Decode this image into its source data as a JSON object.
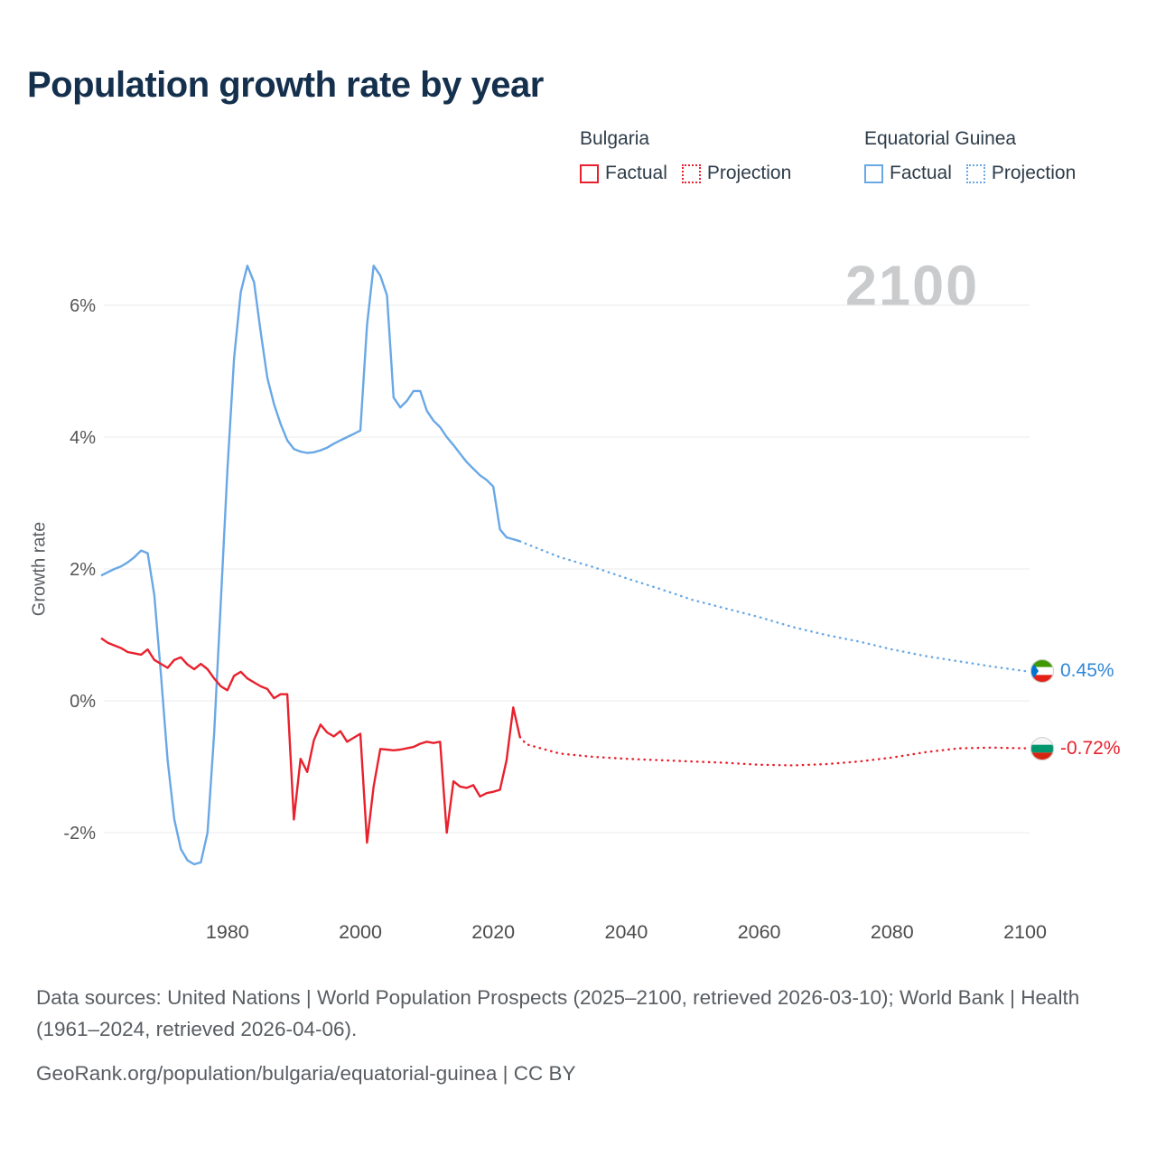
{
  "title": "Population growth rate by year",
  "watermark": "2100",
  "legend": {
    "groups": [
      {
        "name": "Bulgaria",
        "color": "#e8212d",
        "entries": [
          {
            "label": "Factual",
            "style": "solid"
          },
          {
            "label": "Projection",
            "style": "dotted"
          }
        ]
      },
      {
        "name": "Equatorial Guinea",
        "color": "#69a8e6",
        "entries": [
          {
            "label": "Factual",
            "style": "solid"
          },
          {
            "label": "Projection",
            "style": "dotted"
          }
        ]
      }
    ]
  },
  "end_labels": [
    {
      "series": "Equatorial Guinea",
      "value": "0.45%",
      "color": "#2f87d8"
    },
    {
      "series": "Bulgaria",
      "value": "-0.72%",
      "color": "#e8212d"
    }
  ],
  "footer": {
    "sources_line": "Data sources: United Nations | World Population Prospects (2025–2100, retrieved 2026-03-10); World Bank | Health (1961–2024, retrieved 2026-04-06).",
    "attribution_line": "GeoRank.org/population/bulgaria/equatorial-guinea | CC BY"
  },
  "chart_data": {
    "type": "line",
    "title": "Population growth rate by year",
    "xlabel": "",
    "ylabel": "Growth rate",
    "x_ticks": [
      1980,
      2000,
      2020,
      2040,
      2060,
      2080,
      2100
    ],
    "y_ticks": [
      6,
      4,
      2,
      0,
      -2
    ],
    "y_tick_suffix": "%",
    "xlim": [
      1961,
      2113
    ],
    "ylim": [
      -2.9,
      7.0
    ],
    "grid": true,
    "legend_position": "top-right",
    "series": [
      {
        "name": "Equatorial Guinea Factual",
        "color": "#69a8e6",
        "style": "solid",
        "x": [
          1961,
          1962,
          1963,
          1964,
          1965,
          1966,
          1967,
          1968,
          1969,
          1970,
          1971,
          1972,
          1973,
          1974,
          1975,
          1976,
          1977,
          1978,
          1979,
          1980,
          1981,
          1982,
          1983,
          1984,
          1985,
          1986,
          1987,
          1988,
          1989,
          1990,
          1991,
          1992,
          1993,
          1994,
          1995,
          1996,
          1997,
          1998,
          1999,
          2000,
          2001,
          2002,
          2003,
          2004,
          2005,
          2006,
          2007,
          2008,
          2009,
          2010,
          2011,
          2012,
          2013,
          2014,
          2015,
          2016,
          2017,
          2018,
          2019,
          2020,
          2021,
          2022,
          2023,
          2024
        ],
        "y": [
          1.9,
          1.95,
          2.0,
          2.04,
          2.1,
          2.18,
          2.28,
          2.24,
          1.6,
          0.4,
          -0.9,
          -1.8,
          -2.25,
          -2.42,
          -2.48,
          -2.45,
          -2.0,
          -0.5,
          1.5,
          3.5,
          5.2,
          6.2,
          6.6,
          6.35,
          5.6,
          4.9,
          4.5,
          4.2,
          3.95,
          3.82,
          3.78,
          3.76,
          3.77,
          3.8,
          3.84,
          3.9,
          3.95,
          4.0,
          4.05,
          4.1,
          5.7,
          6.6,
          6.45,
          6.15,
          4.6,
          4.45,
          4.55,
          4.7,
          4.7,
          4.4,
          4.25,
          4.15,
          4.0,
          3.88,
          3.75,
          3.62,
          3.52,
          3.42,
          3.35,
          3.25,
          2.6,
          2.48,
          2.45,
          2.42
        ]
      },
      {
        "name": "Equatorial Guinea Projection",
        "color": "#69a8e6",
        "style": "dotted",
        "x": [
          2024,
          2025,
          2030,
          2035,
          2040,
          2045,
          2050,
          2055,
          2060,
          2065,
          2070,
          2075,
          2080,
          2085,
          2090,
          2095,
          2100
        ],
        "y": [
          2.42,
          2.38,
          2.18,
          2.03,
          1.86,
          1.7,
          1.53,
          1.4,
          1.27,
          1.12,
          1.0,
          0.9,
          0.78,
          0.68,
          0.6,
          0.52,
          0.45
        ]
      },
      {
        "name": "Bulgaria Factual",
        "color": "#e8212d",
        "style": "solid",
        "x": [
          1961,
          1962,
          1963,
          1964,
          1965,
          1966,
          1967,
          1968,
          1969,
          1970,
          1971,
          1972,
          1973,
          1974,
          1975,
          1976,
          1977,
          1978,
          1979,
          1980,
          1981,
          1982,
          1983,
          1984,
          1985,
          1986,
          1987,
          1988,
          1989,
          1990,
          1991,
          1992,
          1993,
          1994,
          1995,
          1996,
          1997,
          1998,
          1999,
          2000,
          2001,
          2002,
          2003,
          2004,
          2005,
          2006,
          2007,
          2008,
          2009,
          2010,
          2011,
          2012,
          2013,
          2014,
          2015,
          2016,
          2017,
          2018,
          2019,
          2020,
          2021,
          2022,
          2023,
          2024
        ],
        "y": [
          0.95,
          0.88,
          0.84,
          0.8,
          0.74,
          0.72,
          0.7,
          0.78,
          0.62,
          0.56,
          0.5,
          0.62,
          0.66,
          0.55,
          0.48,
          0.56,
          0.48,
          0.34,
          0.22,
          0.16,
          0.38,
          0.44,
          0.34,
          0.28,
          0.22,
          0.18,
          0.04,
          0.1,
          0.1,
          -1.8,
          -0.88,
          -1.08,
          -0.6,
          -0.36,
          -0.48,
          -0.54,
          -0.46,
          -0.62,
          -0.56,
          -0.5,
          -2.15,
          -1.3,
          -0.73,
          -0.74,
          -0.75,
          -0.74,
          -0.72,
          -0.7,
          -0.65,
          -0.62,
          -0.64,
          -0.62,
          -2.0,
          -1.22,
          -1.3,
          -1.32,
          -1.28,
          -1.45,
          -1.4,
          -1.38,
          -1.35,
          -0.9,
          -0.1,
          -0.55
        ]
      },
      {
        "name": "Bulgaria Projection",
        "color": "#e8212d",
        "style": "dotted",
        "x": [
          2024,
          2025,
          2030,
          2035,
          2040,
          2045,
          2050,
          2055,
          2060,
          2065,
          2070,
          2075,
          2080,
          2085,
          2090,
          2095,
          2100
        ],
        "y": [
          -0.55,
          -0.66,
          -0.8,
          -0.85,
          -0.88,
          -0.9,
          -0.92,
          -0.94,
          -0.97,
          -0.98,
          -0.96,
          -0.92,
          -0.86,
          -0.78,
          -0.72,
          -0.71,
          -0.72
        ]
      }
    ]
  }
}
